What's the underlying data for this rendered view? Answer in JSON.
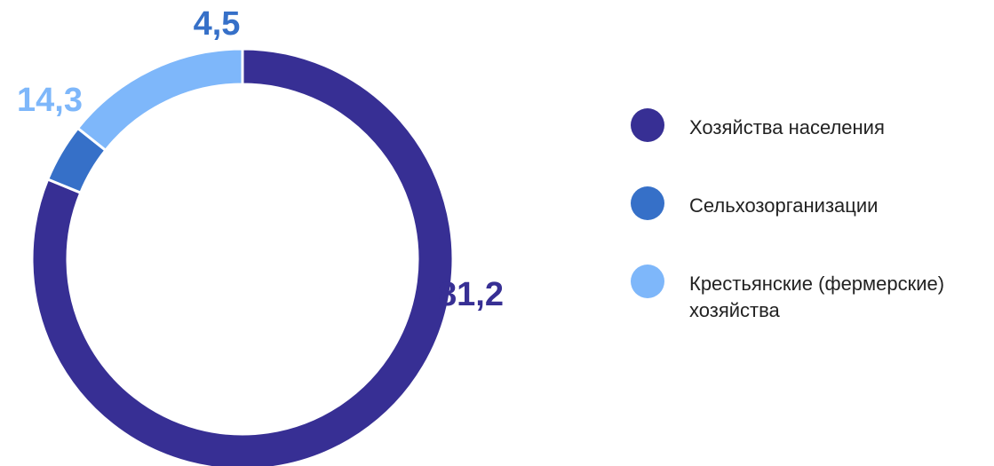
{
  "chart_data": {
    "type": "pie",
    "donut": true,
    "categories": [
      "Хозяйства населения",
      "Сельхозорганизации",
      "Крестьянские (фермерские) хозяйства"
    ],
    "values": [
      81.2,
      4.5,
      14.3
    ],
    "value_labels": [
      "81,2",
      "4,5",
      "14,3"
    ],
    "colors": [
      "#372F94",
      "#3670C8",
      "#7EB7FA"
    ],
    "start_angle_deg": 0,
    "direction": "clockwise",
    "legend": {
      "position": "right",
      "items": [
        {
          "label": "Хозяйства населения",
          "color": "#372F94"
        },
        {
          "label": "Сельхозорганизации",
          "color": "#3670C8"
        },
        {
          "label": "Крестьянские (фермерские) хозяйства",
          "color": "#7EB7FA"
        }
      ]
    }
  }
}
